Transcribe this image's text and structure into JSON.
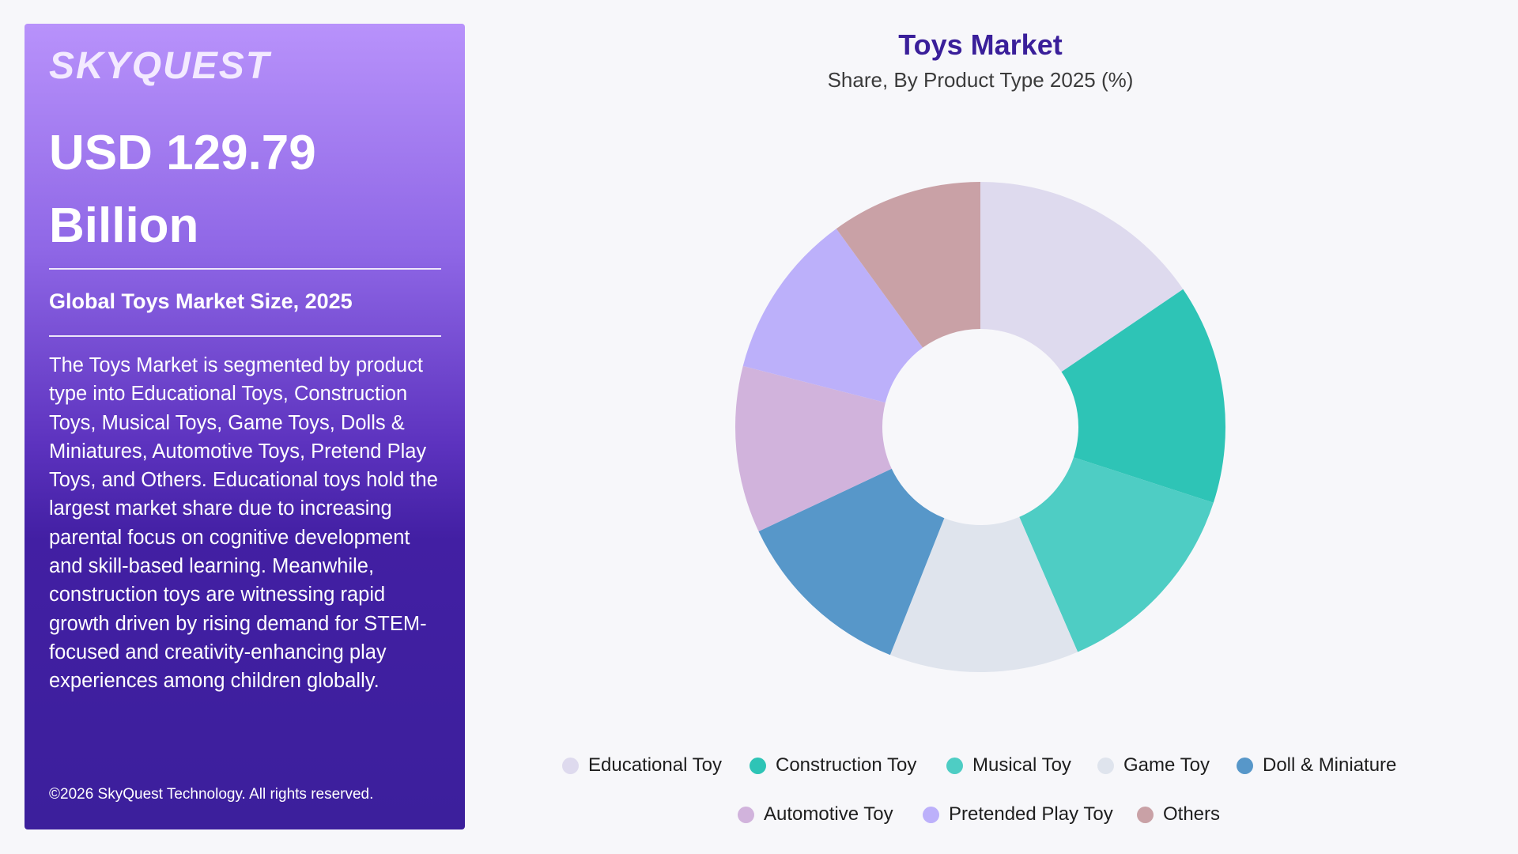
{
  "panel": {
    "brand": "SKYQUEST",
    "market_size_line1": "USD 129.79",
    "market_size_line2": "Billion",
    "size_label": "Global Toys Market Size, 2025",
    "description": "The Toys Market is segmented by product type into Educational Toys, Construction Toys, Musical Toys, Game Toys, Dolls & Miniatures, Automotive Toys, Pretend Play Toys, and Others. Educational toys hold the largest market share due to increasing parental focus on cognitive development and skill-based learning. Meanwhile, construction toys are witnessing rapid growth driven by rising demand for STEM-focused and creativity-enhancing play experiences among children globally.",
    "copyright": "©2026 SkyQuest Technology. All rights reserved."
  },
  "chart_data": {
    "type": "pie",
    "variant": "donut",
    "title": "Toys Market",
    "subtitle": "Share, By Product Type 2025 (%)",
    "legend_position": "bottom",
    "categories": [
      "Educational Toy",
      "Construction Toy",
      "Musical Toy",
      "Game Toy",
      "Doll & Miniature",
      "Automotive Toy",
      "Pretended Play Toy",
      "Others"
    ],
    "values": [
      15.5,
      14.5,
      13.5,
      12.5,
      12,
      11,
      11,
      10
    ],
    "colors": [
      "#dedaee",
      "#2ec4b6",
      "#4ecdc4",
      "#dfe4ed",
      "#5797c9",
      "#d1b3dc",
      "#bcb0fa",
      "#c9a1a6"
    ]
  },
  "colors": {
    "panel_gradient_top": "#b892fb",
    "panel_gradient_bottom": "#3c1f9c",
    "title": "#3a1f9a",
    "background": "#f7f7fa"
  }
}
